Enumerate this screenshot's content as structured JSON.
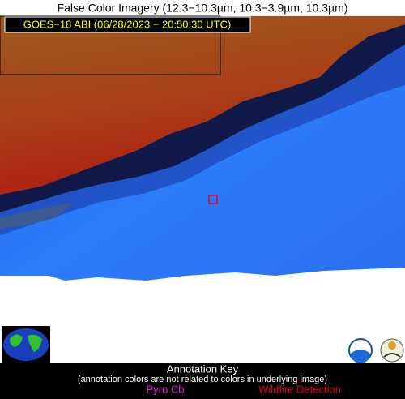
{
  "header": {
    "title": "False Color Imagery (12.3−10.3µm, 10.3−3.9µm, 10.3µm)",
    "subtitle": "GOES−18 ABI (06/28/2023 − 20:50:30 UTC)"
  },
  "annotation_key": {
    "title": "Annotation Key",
    "note": "(annotation colors are not related to colors in underlying image)",
    "items": [
      "Pyro Cb",
      "Wildfire Detection"
    ]
  }
}
